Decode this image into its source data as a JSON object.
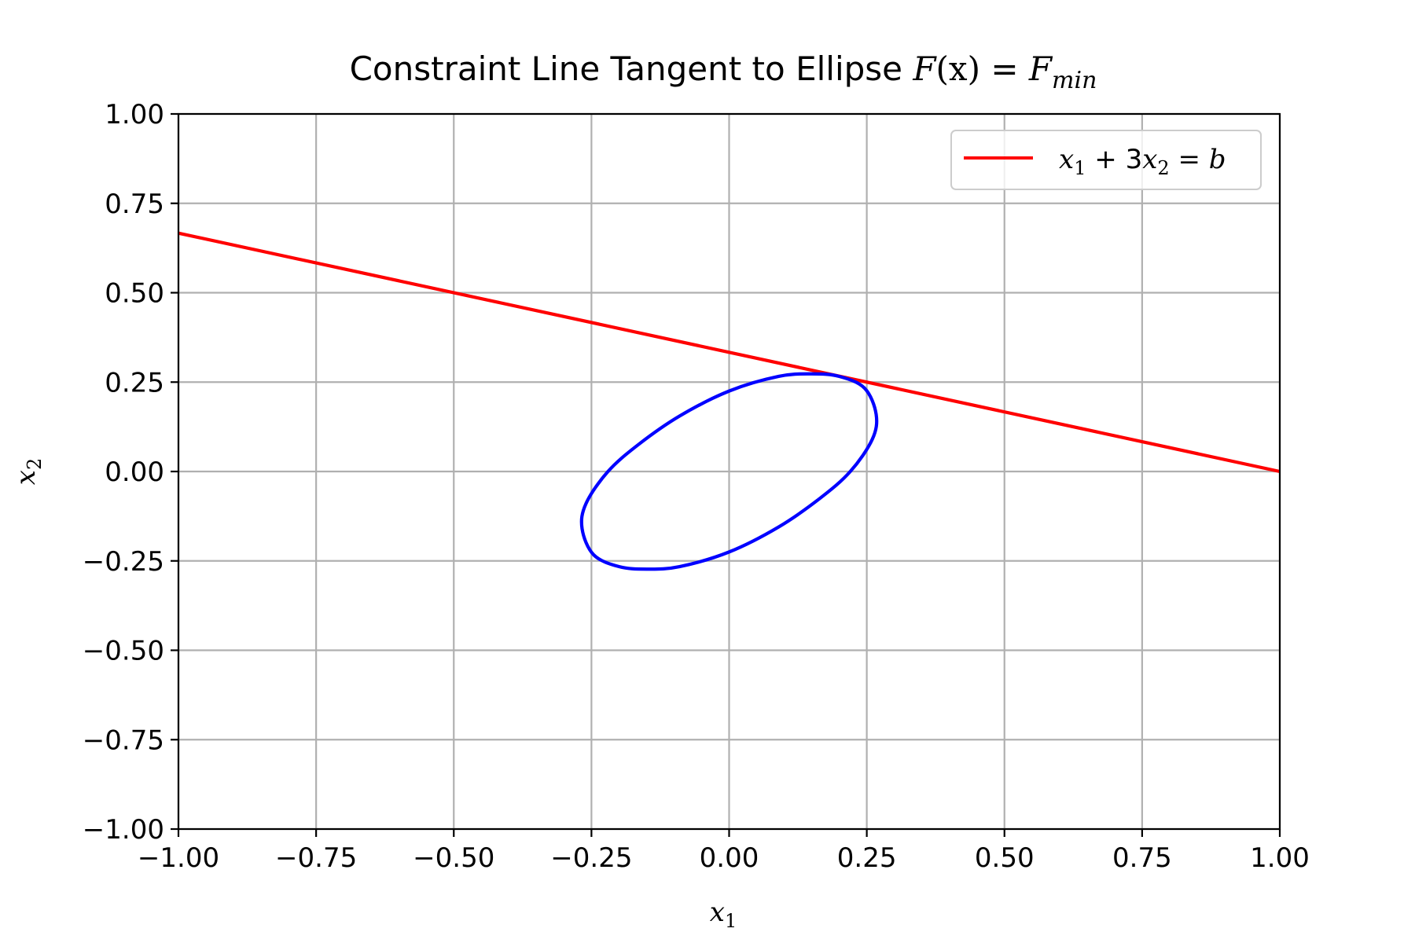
{
  "chart_data": {
    "type": "line",
    "title": "Constraint Line Tangent to Ellipse F(x) = F_min",
    "title_parts": {
      "prefix": "Constraint Line Tangent to Ellipse ",
      "math_lhs": "F",
      "math_arg": "(x)",
      "math_eq": " = ",
      "math_rhs": "F",
      "math_sub": "min"
    },
    "xlabel": "x",
    "xlabel_sub": "1",
    "ylabel": "x",
    "ylabel_sub": "2",
    "xlim": [
      -1.0,
      1.0
    ],
    "ylim": [
      -1.0,
      1.0
    ],
    "xticks": [
      "−1.00",
      "−0.75",
      "−0.50",
      "−0.25",
      "0.00",
      "0.25",
      "0.50",
      "0.75",
      "1.00"
    ],
    "yticks": [
      "−1.00",
      "−0.75",
      "−0.50",
      "−0.25",
      "0.00",
      "0.25",
      "0.50",
      "0.75",
      "1.00"
    ],
    "grid": true,
    "legend_position": "top-right",
    "series": [
      {
        "name": "x1 + 3x2 = b",
        "color": "#ff0000",
        "x": [
          -1.0,
          1.0
        ],
        "y": [
          0.6667,
          0.0
        ]
      },
      {
        "color": "#0000ff",
        "x": [
          0.267,
          0.246,
          0.2,
          0.15,
          0.09,
          0.0,
          -0.09,
          -0.165,
          -0.22,
          -0.26,
          -0.267,
          -0.246,
          -0.2,
          -0.15,
          -0.09,
          0.0,
          0.09,
          0.165,
          0.22,
          0.26,
          0.267
        ],
        "y": [
          0.16,
          0.233,
          0.266,
          0.273,
          0.266,
          0.225,
          0.155,
          0.075,
          0.0,
          -0.09,
          -0.16,
          -0.233,
          -0.266,
          -0.273,
          -0.266,
          -0.225,
          -0.155,
          -0.075,
          0.0,
          0.09,
          0.16
        ]
      }
    ],
    "legend": {
      "label_parts": {
        "a": "x",
        "a_sub": "1",
        "mid": " + 3",
        "b": "x",
        "b_sub": "2",
        "rest": " = b"
      }
    }
  }
}
